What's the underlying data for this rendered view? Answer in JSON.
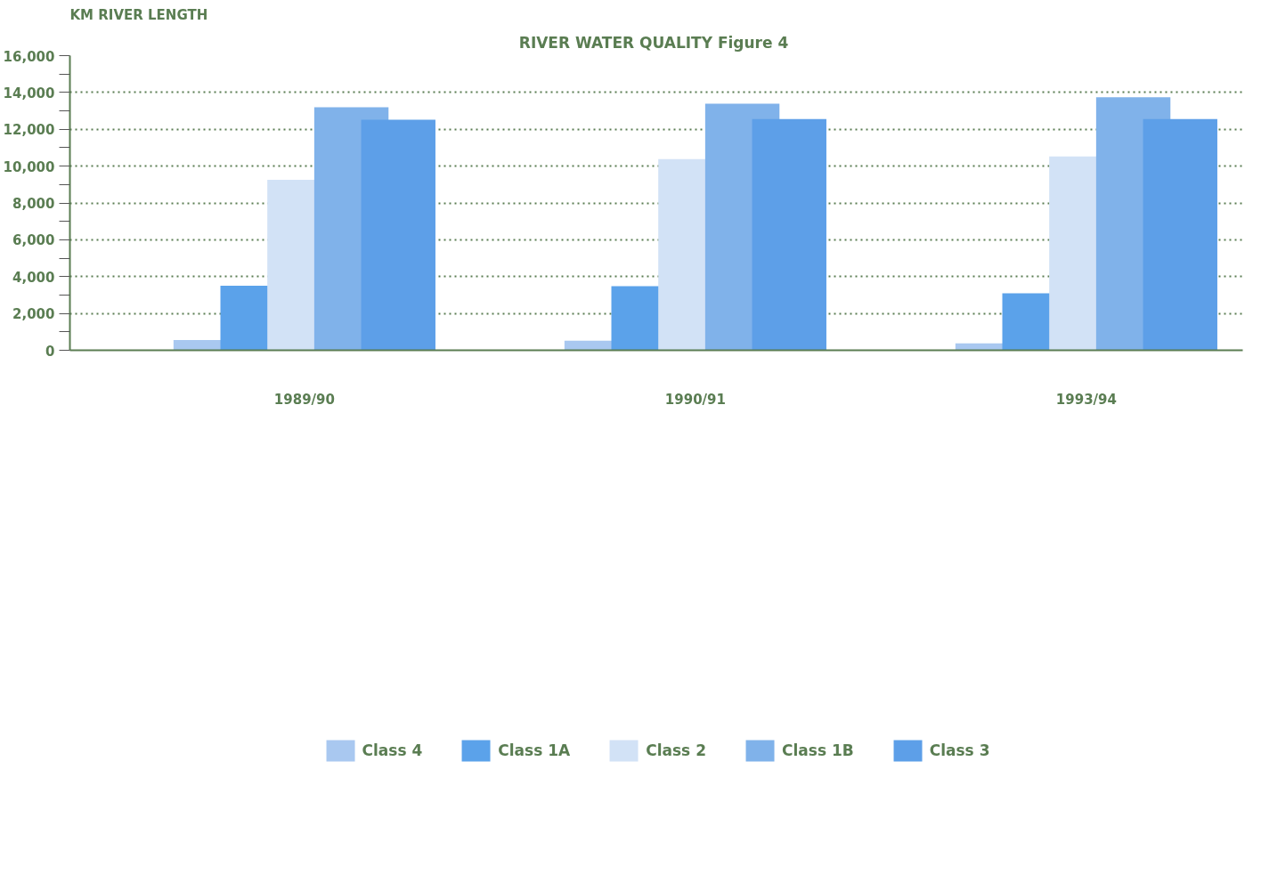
{
  "chart_data": {
    "type": "bar",
    "title": "RIVER WATER QUALITY  Figure 4",
    "ylabel": "KM RIVER LENGTH",
    "categories": [
      "1989/90",
      "1990/91",
      "1993/94"
    ],
    "series": [
      {
        "name": "Class 4",
        "color": "#a9c8f0",
        "values": [
          560,
          520,
          370
        ]
      },
      {
        "name": "Class 1A",
        "color": "#5ba2ea",
        "values": [
          3500,
          3480,
          3090
        ]
      },
      {
        "name": "Class 2",
        "color": "#d2e2f6",
        "values": [
          9260,
          10380,
          10530
        ]
      },
      {
        "name": "Class 1B",
        "color": "#80b2ea",
        "values": [
          13200,
          13390,
          13740
        ]
      },
      {
        "name": "Class 3",
        "color": "#5d9fe8",
        "values": [
          12520,
          12560,
          12560
        ]
      }
    ],
    "ylim": [
      0,
      16000
    ],
    "yticks": [
      0,
      {
        "value": 1000,
        "label": null
      },
      {
        "value": 2000,
        "label": "2,000"
      },
      {
        "value": 3000,
        "label": null
      },
      {
        "value": 4000,
        "label": "4,000"
      },
      {
        "value": 5000,
        "label": null
      },
      {
        "value": 6000,
        "label": "6,000"
      },
      {
        "value": 7000,
        "label": null
      },
      {
        "value": 8000,
        "label": "8,000"
      },
      {
        "value": 9000,
        "label": null
      },
      {
        "value": 10000,
        "label": "10,000"
      },
      {
        "value": 11000,
        "label": null
      },
      {
        "value": 12000,
        "label": "12,000"
      },
      {
        "value": 13000,
        "label": null
      },
      {
        "value": 14000,
        "label": "14,000"
      },
      {
        "value": 15000,
        "label": null
      },
      {
        "value": 16000,
        "label": "16,000"
      }
    ],
    "grid": "y",
    "line_style": "dotted",
    "legend": "bottom"
  }
}
